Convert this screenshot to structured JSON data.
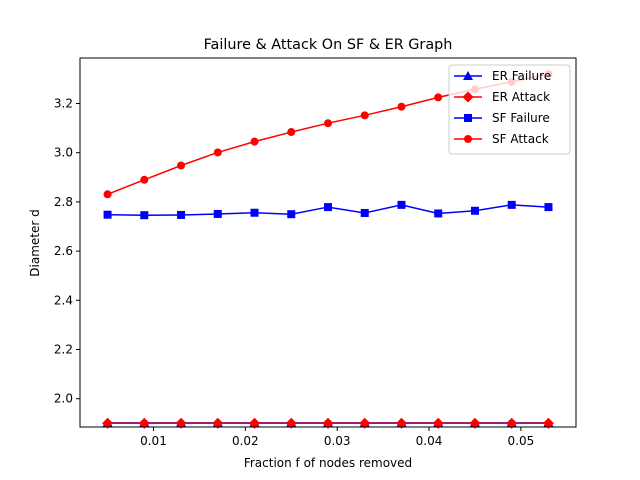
{
  "chart_data": {
    "type": "line",
    "title": "Failure & Attack On SF & ER Graph",
    "xlabel": "Fraction f of nodes removed",
    "ylabel": "Diameter d",
    "xlim": [
      0.002,
      0.056
    ],
    "ylim": [
      1.885,
      3.385
    ],
    "xticks": [
      0.01,
      0.02,
      0.03,
      0.04,
      0.05
    ],
    "xtick_labels": [
      "0.01",
      "0.02",
      "0.03",
      "0.04",
      "0.05"
    ],
    "yticks": [
      2.0,
      2.2,
      2.4,
      2.6,
      2.8,
      3.0,
      3.2
    ],
    "ytick_labels": [
      "2.0",
      "2.2",
      "2.4",
      "2.6",
      "2.8",
      "3.0",
      "3.2"
    ],
    "grid": false,
    "legend_position": "top-right",
    "x": [
      0.005,
      0.009,
      0.013,
      0.017,
      0.021,
      0.025,
      0.029,
      0.033,
      0.037,
      0.041,
      0.045,
      0.049,
      0.053
    ],
    "series": [
      {
        "name": "ER Failure",
        "color": "#0000ff",
        "marker": "triangle",
        "values": [
          1.902,
          1.902,
          1.902,
          1.902,
          1.902,
          1.902,
          1.902,
          1.902,
          1.902,
          1.902,
          1.902,
          1.902,
          1.902
        ]
      },
      {
        "name": "ER Attack",
        "color": "#ff0000",
        "marker": "diamond",
        "values": [
          1.9,
          1.9,
          1.9,
          1.9,
          1.9,
          1.9,
          1.9,
          1.9,
          1.9,
          1.9,
          1.9,
          1.9,
          1.9
        ]
      },
      {
        "name": "SF Failure",
        "color": "#0000ff",
        "marker": "square",
        "values": [
          2.748,
          2.746,
          2.747,
          2.751,
          2.756,
          2.75,
          2.779,
          2.755,
          2.788,
          2.753,
          2.764,
          2.788,
          2.779
        ]
      },
      {
        "name": "SF Attack",
        "color": "#ff0000",
        "marker": "circle",
        "values": [
          2.831,
          2.89,
          2.948,
          3.001,
          3.045,
          3.084,
          3.12,
          3.152,
          3.187,
          3.225,
          3.258,
          3.288,
          3.32
        ]
      }
    ]
  }
}
